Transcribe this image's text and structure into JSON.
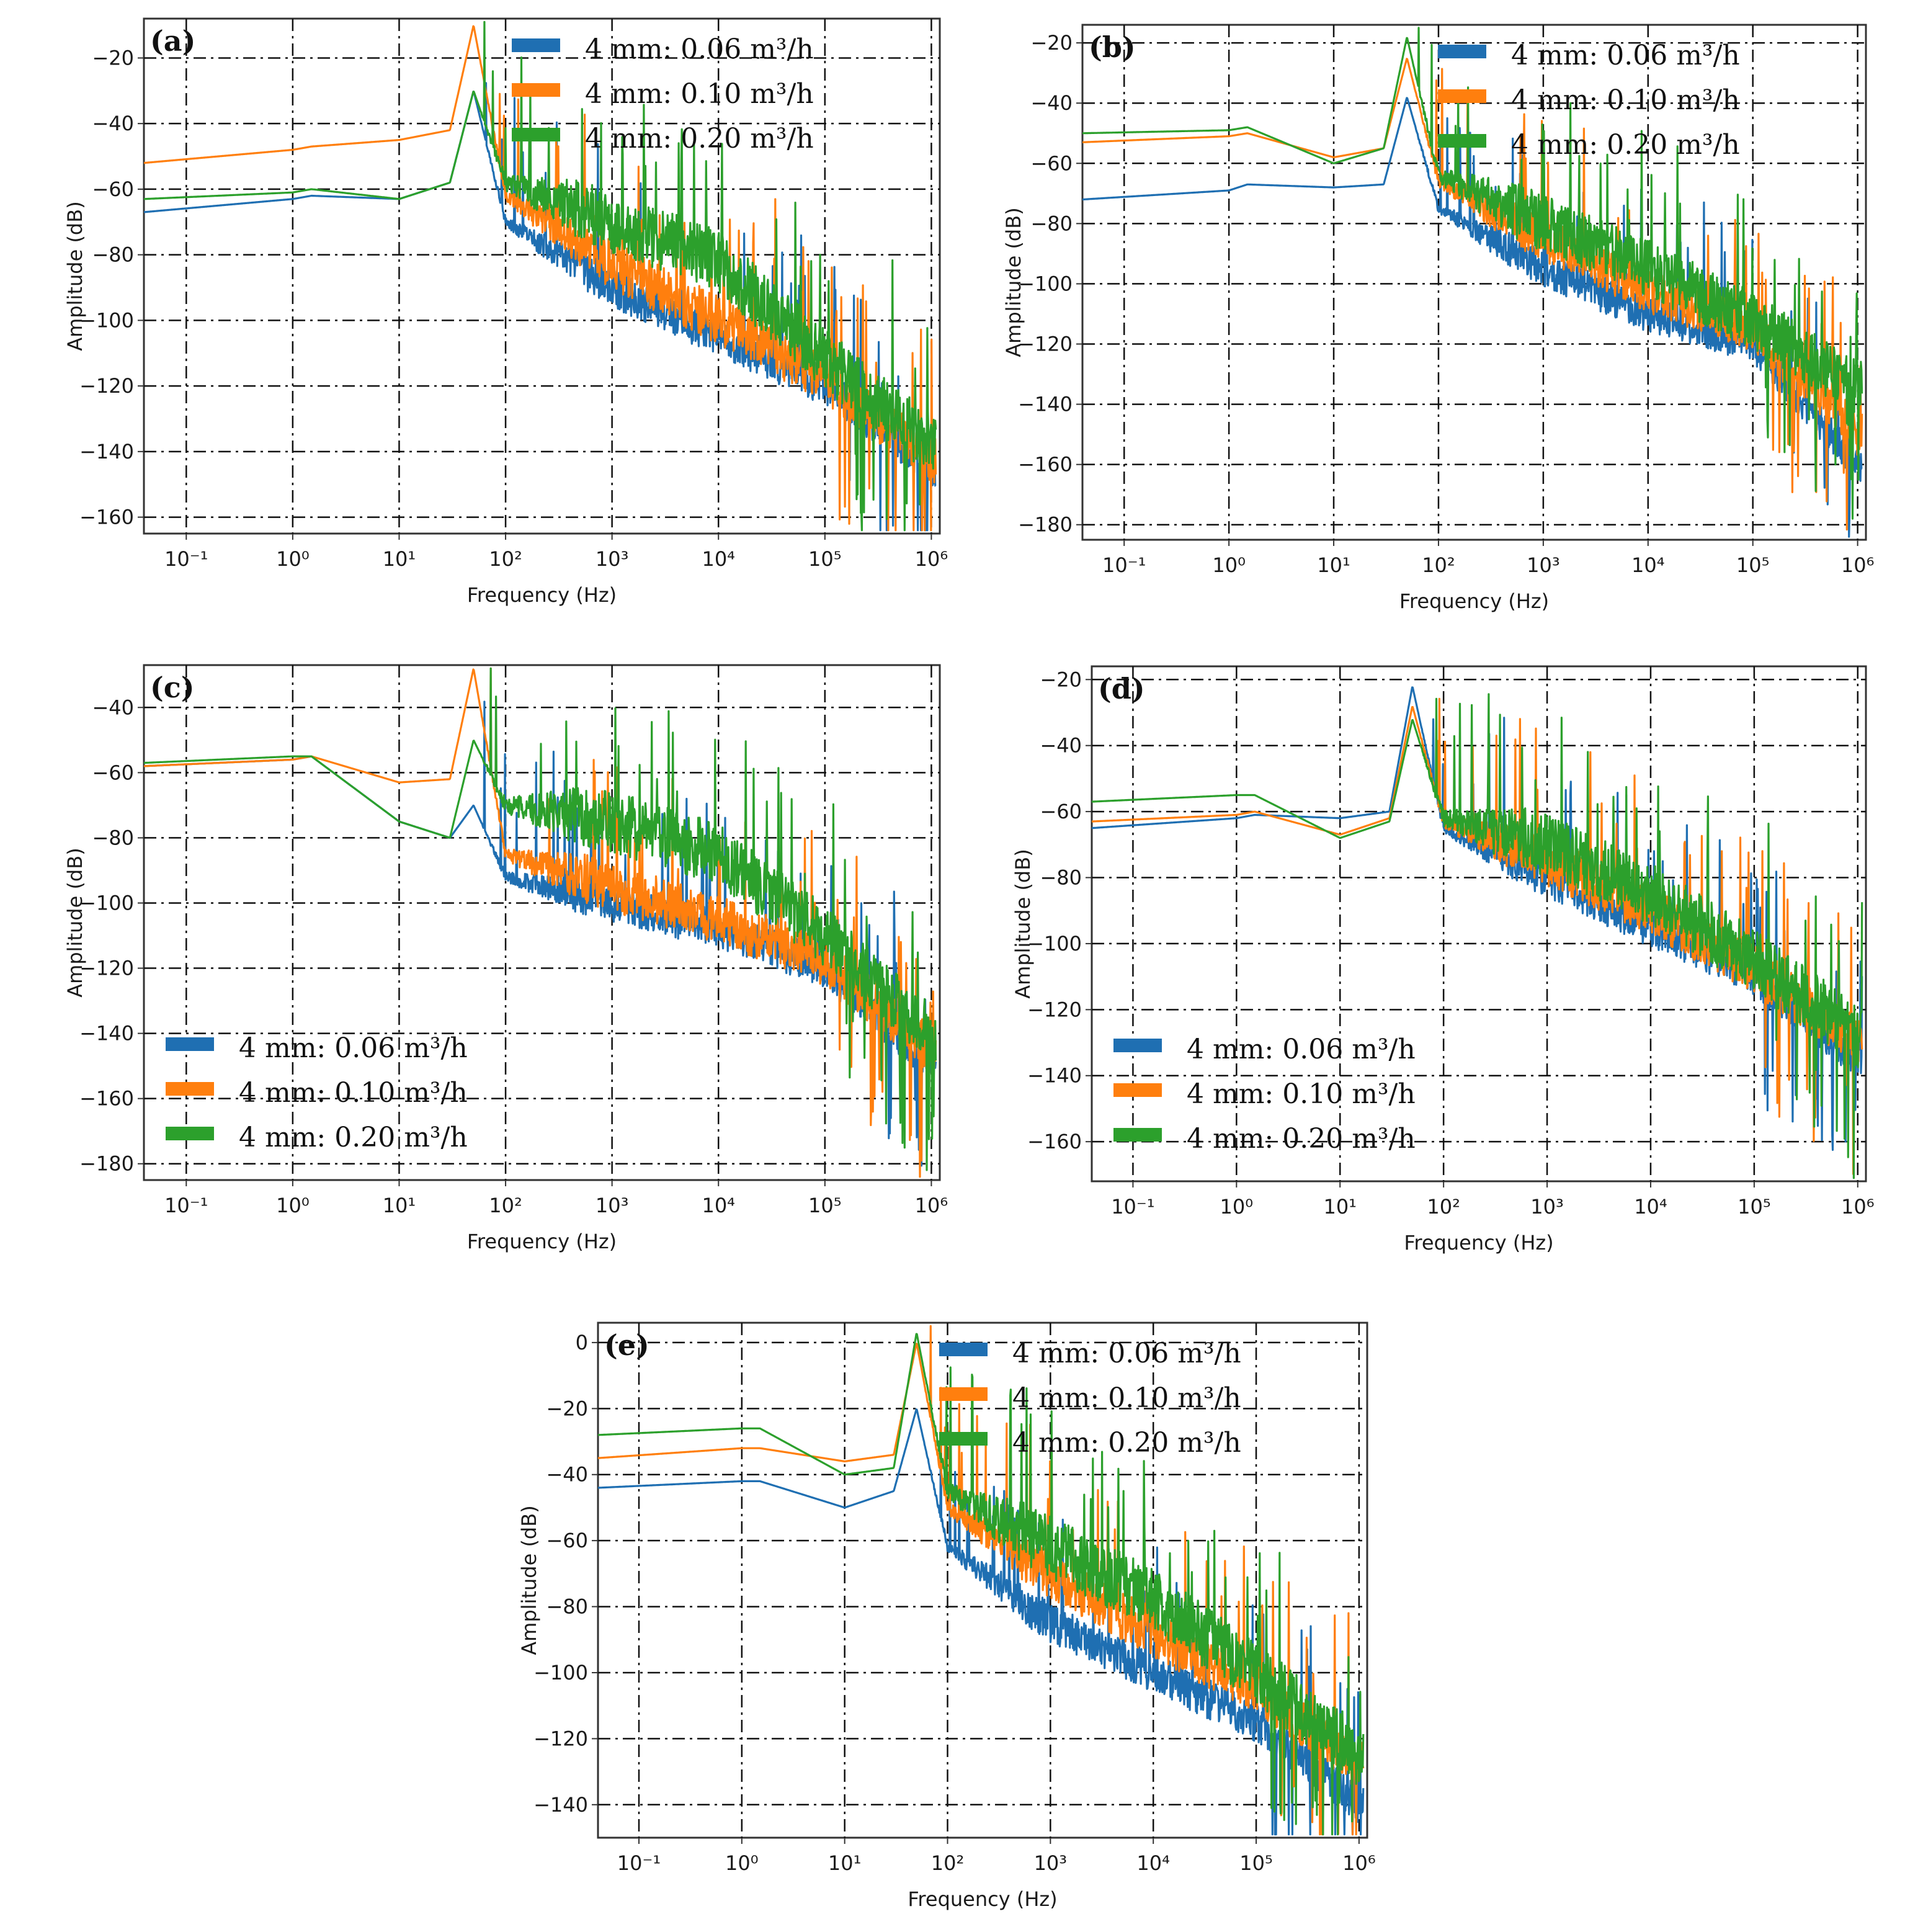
{
  "figure": {
    "x_label": "Frequency (Hz)",
    "y_label": "Amplitude (dB)",
    "legend": [
      "4 mm: 0.06 m³/h",
      "4 mm: 0.10 m³/h",
      "4 mm: 0.20 m³/h"
    ],
    "colors": {
      "s006": "#1f6fb2",
      "s010": "#ff7f0e",
      "s020": "#2ca02c"
    }
  },
  "chart_data": [
    {
      "type": "line",
      "label": "(a)",
      "xscale": "log",
      "xlim": [
        0.04,
        1200000
      ],
      "ylim": [
        -165,
        -8
      ],
      "yticks": [
        -160,
        -140,
        -120,
        -100,
        -80,
        -60,
        -40,
        -20
      ],
      "xticks": [
        "10⁻¹",
        "10⁰",
        "10¹",
        "10²",
        "10³",
        "10⁴",
        "10⁵",
        "10⁶"
      ],
      "legend_position": "top-right",
      "series": [
        {
          "name": "4 mm: 0.06 m³/h",
          "key": "s006",
          "x": [
            0.04,
            1,
            1.5,
            10,
            30,
            50,
            100,
            1000,
            10000,
            100000,
            1000000
          ],
          "y": [
            -67,
            -63,
            -62,
            -63,
            -58,
            -30,
            -70,
            -90,
            -105,
            -120,
            -145
          ]
        },
        {
          "name": "4 mm: 0.10 m³/h",
          "key": "s010",
          "x": [
            0.04,
            1,
            1.5,
            10,
            30,
            50,
            100,
            1000,
            10000,
            100000,
            1000000
          ],
          "y": [
            -52,
            -48,
            -47,
            -45,
            -42,
            -10,
            -62,
            -83,
            -100,
            -118,
            -142
          ]
        },
        {
          "name": "4 mm: 0.20 m³/h",
          "key": "s020",
          "x": [
            0.04,
            1,
            1.5,
            10,
            30,
            50,
            100,
            1000,
            10000,
            100000,
            1000000
          ],
          "y": [
            -63,
            -61,
            -60,
            -63,
            -58,
            -30,
            -58,
            -70,
            -82,
            -112,
            -138
          ]
        }
      ]
    },
    {
      "type": "line",
      "label": "(b)",
      "xscale": "log",
      "xlim": [
        0.04,
        1200000
      ],
      "ylim": [
        -185,
        -14
      ],
      "yticks": [
        -180,
        -160,
        -140,
        -120,
        -100,
        -80,
        -60,
        -40,
        -20
      ],
      "xticks": [
        "10⁻¹",
        "10⁰",
        "10¹",
        "10²",
        "10³",
        "10⁴",
        "10⁵",
        "10⁶"
      ],
      "legend_position": "top-right",
      "series": [
        {
          "name": "4 mm: 0.06 m³/h",
          "key": "s006",
          "x": [
            0.04,
            1,
            1.5,
            10,
            30,
            50,
            100,
            1000,
            10000,
            100000,
            1000000
          ],
          "y": [
            -72,
            -69,
            -67,
            -68,
            -67,
            -38,
            -75,
            -95,
            -110,
            -120,
            -160
          ]
        },
        {
          "name": "4 mm: 0.10 m³/h",
          "key": "s010",
          "x": [
            0.04,
            1,
            1.5,
            10,
            30,
            50,
            100,
            1000,
            10000,
            100000,
            1000000
          ],
          "y": [
            -53,
            -51,
            -50,
            -58,
            -55,
            -25,
            -66,
            -85,
            -102,
            -115,
            -150
          ]
        },
        {
          "name": "4 mm: 0.20 m³/h",
          "key": "s020",
          "x": [
            0.04,
            1,
            1.5,
            10,
            30,
            50,
            100,
            1000,
            10000,
            100000,
            1000000
          ],
          "y": [
            -50,
            -49,
            -48,
            -60,
            -55,
            -18,
            -64,
            -80,
            -95,
            -112,
            -135
          ]
        }
      ]
    },
    {
      "type": "line",
      "label": "(c)",
      "xscale": "log",
      "xlim": [
        0.04,
        1200000
      ],
      "ylim": [
        -185,
        -27
      ],
      "yticks": [
        -180,
        -160,
        -140,
        -120,
        -100,
        -80,
        -60,
        -40
      ],
      "xticks": [
        "10⁻¹",
        "10⁰",
        "10¹",
        "10²",
        "10³",
        "10⁴",
        "10⁵",
        "10⁶"
      ],
      "legend_position": "bottom-left",
      "series": [
        {
          "name": "4 mm: 0.06 m³/h",
          "key": "s006",
          "x": [
            0.04,
            1,
            1.5,
            10,
            30,
            50,
            100,
            1000,
            10000,
            100000,
            1000000
          ],
          "y": [
            -58,
            -56,
            -55,
            -75,
            -80,
            -70,
            -92,
            -100,
            -108,
            -120,
            -150
          ]
        },
        {
          "name": "4 mm: 0.10 m³/h",
          "key": "s010",
          "x": [
            0.04,
            1,
            1.5,
            10,
            30,
            50,
            100,
            1000,
            10000,
            100000,
            1000000
          ],
          "y": [
            -58,
            -56,
            -55,
            -63,
            -62,
            -28,
            -85,
            -95,
            -105,
            -118,
            -145
          ]
        },
        {
          "name": "4 mm: 0.20 m³/h",
          "key": "s020",
          "x": [
            0.04,
            1,
            1.5,
            10,
            30,
            50,
            100,
            1000,
            10000,
            100000,
            1000000
          ],
          "y": [
            -57,
            -55,
            -55,
            -75,
            -80,
            -50,
            -70,
            -75,
            -85,
            -110,
            -140
          ]
        }
      ]
    },
    {
      "type": "line",
      "label": "(d)",
      "xscale": "log",
      "xlim": [
        0.04,
        1200000
      ],
      "ylim": [
        -172,
        -16
      ],
      "yticks": [
        -160,
        -140,
        -120,
        -100,
        -80,
        -60,
        -40,
        -20
      ],
      "xticks": [
        "10⁻¹",
        "10⁰",
        "10¹",
        "10²",
        "10³",
        "10⁴",
        "10⁵",
        "10⁶"
      ],
      "legend_position": "bottom-left",
      "series": [
        {
          "name": "4 mm: 0.06 m³/h",
          "key": "s006",
          "x": [
            0.04,
            1,
            1.5,
            10,
            30,
            50,
            100,
            1000,
            10000,
            100000,
            1000000
          ],
          "y": [
            -65,
            -62,
            -61,
            -62,
            -60,
            -22,
            -65,
            -80,
            -95,
            -110,
            -135
          ]
        },
        {
          "name": "4 mm: 0.10 m³/h",
          "key": "s010",
          "x": [
            0.04,
            1,
            1.5,
            10,
            30,
            50,
            100,
            1000,
            10000,
            100000,
            1000000
          ],
          "y": [
            -63,
            -61,
            -60,
            -67,
            -62,
            -28,
            -63,
            -75,
            -90,
            -108,
            -130
          ]
        },
        {
          "name": "4 mm: 0.20 m³/h",
          "key": "s020",
          "x": [
            0.04,
            1,
            1.5,
            10,
            30,
            50,
            100,
            1000,
            10000,
            100000,
            1000000
          ],
          "y": [
            -57,
            -55,
            -55,
            -68,
            -63,
            -32,
            -62,
            -70,
            -85,
            -105,
            -128
          ]
        }
      ]
    },
    {
      "type": "line",
      "label": "(e)",
      "xscale": "log",
      "xlim": [
        0.04,
        1200000
      ],
      "ylim": [
        -150,
        6
      ],
      "yticks": [
        -140,
        -120,
        -100,
        -80,
        -60,
        -40,
        -20,
        0
      ],
      "xticks": [
        "10⁻¹",
        "10⁰",
        "10¹",
        "10²",
        "10³",
        "10⁴",
        "10⁵",
        "10⁶"
      ],
      "legend_position": "top-right",
      "series": [
        {
          "name": "4 mm: 0.06 m³/h",
          "key": "s006",
          "x": [
            0.04,
            1,
            1.5,
            10,
            30,
            50,
            100,
            1000,
            10000,
            100000,
            1000000
          ],
          "y": [
            -44,
            -42,
            -42,
            -50,
            -45,
            -20,
            -62,
            -85,
            -100,
            -115,
            -140
          ]
        },
        {
          "name": "4 mm: 0.10 m³/h",
          "key": "s010",
          "x": [
            0.04,
            1,
            1.5,
            10,
            30,
            50,
            100,
            1000,
            10000,
            100000,
            1000000
          ],
          "y": [
            -35,
            -32,
            -32,
            -36,
            -34,
            0,
            -50,
            -70,
            -88,
            -105,
            -128
          ]
        },
        {
          "name": "4 mm: 0.20 m³/h",
          "key": "s020",
          "x": [
            0.04,
            1,
            1.5,
            10,
            30,
            50,
            100,
            1000,
            10000,
            100000,
            1000000
          ],
          "y": [
            -28,
            -26,
            -26,
            -40,
            -38,
            3,
            -45,
            -62,
            -78,
            -100,
            -125
          ]
        }
      ]
    }
  ]
}
